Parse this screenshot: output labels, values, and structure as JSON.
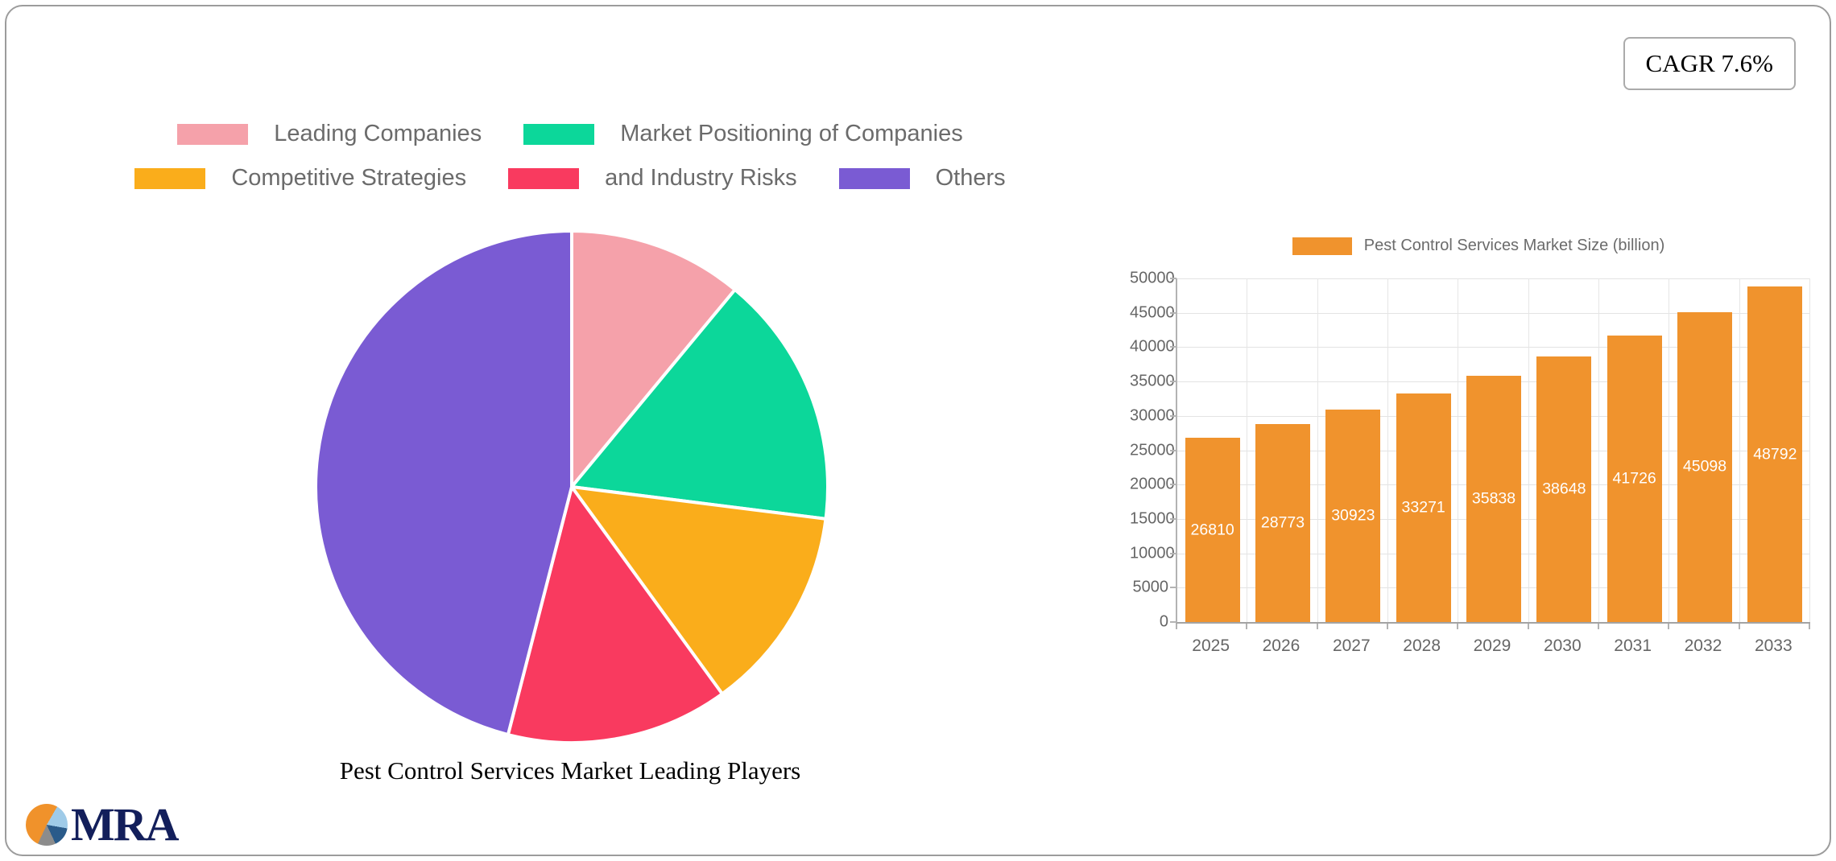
{
  "header": {
    "cagr_badge": "CAGR 7.6%"
  },
  "branding": {
    "logo_text": "MRA"
  },
  "chart_data": [
    {
      "type": "pie",
      "title": "Pest Control Services Market Leading Players",
      "legend_position": "top",
      "direction": "clockwise",
      "start_angle_deg": 0,
      "slices": [
        {
          "label": "Leading Companies",
          "value": 11,
          "color": "#f5a1aa"
        },
        {
          "label": "Market Positioning of Companies",
          "value": 16,
          "color": "#0cd79a"
        },
        {
          "label": "Competitive Strategies",
          "value": 13,
          "color": "#faad1b"
        },
        {
          "label": "and Industry Risks",
          "value": 14,
          "color": "#f93a5f"
        },
        {
          "label": "Others",
          "value": 46,
          "color": "#7a5bd3"
        }
      ]
    },
    {
      "type": "bar",
      "legend_label": "Pest Control Services Market Size (billion)",
      "bar_color": "#f0932d",
      "categories": [
        "2025",
        "2026",
        "2027",
        "2028",
        "2029",
        "2030",
        "2031",
        "2032",
        "2033"
      ],
      "values": [
        26810,
        28773,
        30923,
        33271,
        35838,
        38648,
        41726,
        45098,
        48792
      ],
      "ylim": [
        0,
        50000
      ],
      "ytick_step": 5000,
      "yticks": [
        0,
        5000,
        10000,
        15000,
        20000,
        25000,
        30000,
        35000,
        40000,
        45000,
        50000
      ],
      "grid": true,
      "value_labels": "inside-center-white"
    }
  ]
}
